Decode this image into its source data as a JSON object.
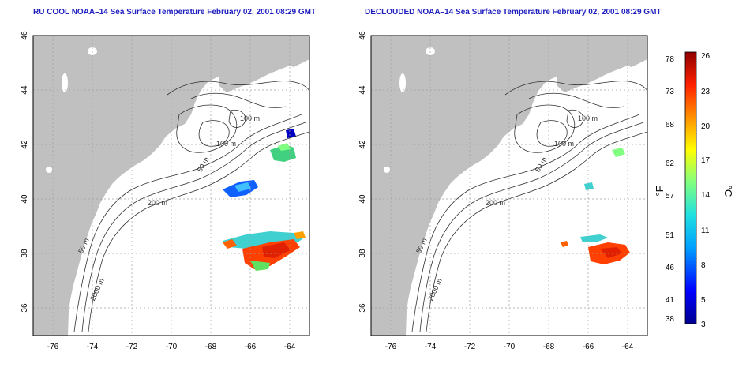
{
  "panels": [
    {
      "id": "left",
      "title": "RU COOL NOAA–14 Sea Surface Temperature February 02, 2001 08:29 GMT"
    },
    {
      "id": "right",
      "title": "DECLOUDED NOAA–14 Sea Surface Temperature February 02, 2001 08:29 GMT"
    }
  ],
  "map": {
    "lon_range": [
      -77,
      -63
    ],
    "lat_range": [
      35,
      46
    ],
    "x_ticks": [
      "-76",
      "-74",
      "-72",
      "-70",
      "-68",
      "-66",
      "-64"
    ],
    "y_ticks": [
      "36",
      "38",
      "40",
      "42",
      "44",
      "46"
    ],
    "land_color": "#c0c0c0",
    "contour_labels": [
      "100 m",
      "100 m",
      "50 m",
      "200 m",
      "50 m",
      "2000 m"
    ]
  },
  "colorbar": {
    "fahrenheit_ticks": [
      "78",
      "73",
      "68",
      "62",
      "57",
      "51",
      "46",
      "41",
      "38"
    ],
    "celsius_ticks": [
      "26",
      "23",
      "20",
      "17",
      "14",
      "11",
      "8",
      "5",
      "3"
    ],
    "fahrenheit_label": "°F",
    "celsius_label": "°C",
    "range_c": [
      3,
      26
    ],
    "colors": [
      "#00008f",
      "#0000ff",
      "#00a0ff",
      "#20e0e0",
      "#80ff80",
      "#ffff00",
      "#ff9000",
      "#ff2000",
      "#8f0000"
    ]
  }
}
